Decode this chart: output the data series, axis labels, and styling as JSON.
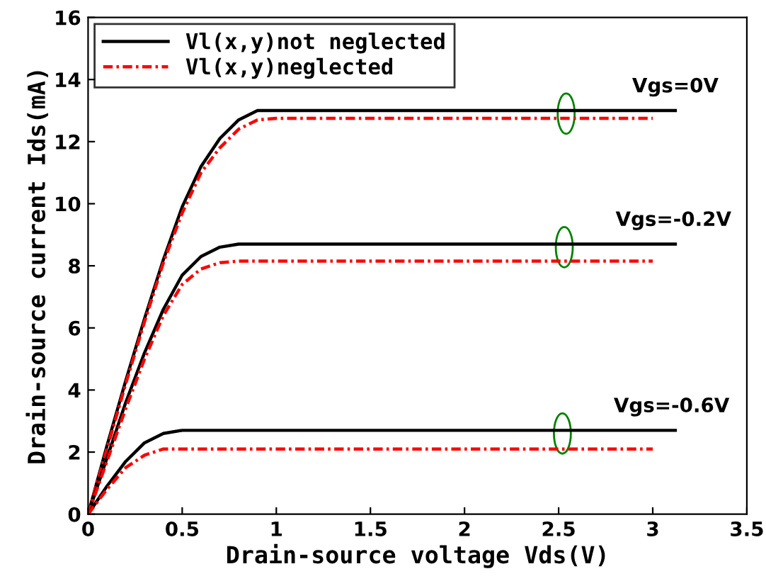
{
  "chart_data": {
    "type": "line",
    "xlabel": "Drain-source voltage Vds(V)",
    "ylabel": "Drain-source current Ids(mA)",
    "xlim": [
      0,
      3.5
    ],
    "ylim": [
      0,
      16
    ],
    "xticks": [
      0,
      0.5,
      1,
      1.5,
      2,
      2.5,
      3,
      3.5
    ],
    "yticks": [
      0,
      2,
      4,
      6,
      8,
      10,
      12,
      14,
      16
    ],
    "grid": false,
    "legend": "top left",
    "marker": "none",
    "series": [
      {
        "name": "Vl(x,y)not neglected",
        "color": "#000000",
        "line_style": "solid",
        "x": [
          0,
          0.1,
          0.2,
          0.3,
          0.4,
          0.5,
          0.6,
          0.7,
          0.8,
          0.9,
          1.0,
          3.12
        ],
        "values": [
          0,
          2.2,
          4.3,
          6.3,
          8.2,
          9.9,
          11.2,
          12.1,
          12.7,
          13,
          13,
          13
        ]
      },
      {
        "name": "Vl(x,y)neglected",
        "color": "#ff0000",
        "line_style": "dashdot",
        "x": [
          0,
          0.1,
          0.2,
          0.3,
          0.4,
          0.5,
          0.6,
          0.7,
          0.8,
          0.9,
          1.0,
          3.0
        ],
        "values": [
          0,
          2.1,
          4.2,
          6.2,
          8.1,
          9.7,
          11.0,
          11.8,
          12.4,
          12.7,
          12.75,
          12.75
        ]
      },
      {
        "color": "#000000",
        "line_style": "solid",
        "x": [
          0,
          0.1,
          0.2,
          0.3,
          0.4,
          0.5,
          0.6,
          0.7,
          0.8,
          3.12
        ],
        "values": [
          0,
          1.8,
          3.6,
          5.2,
          6.6,
          7.7,
          8.3,
          8.6,
          8.7,
          8.7
        ]
      },
      {
        "color": "#ff0000",
        "line_style": "dashdot",
        "x": [
          0,
          0.1,
          0.2,
          0.3,
          0.4,
          0.5,
          0.6,
          0.7,
          0.8,
          3.0
        ],
        "values": [
          0,
          1.7,
          3.4,
          5.0,
          6.4,
          7.4,
          7.9,
          8.1,
          8.15,
          8.15
        ]
      },
      {
        "color": "#000000",
        "line_style": "solid",
        "x": [
          0,
          0.1,
          0.2,
          0.3,
          0.4,
          0.5,
          3.12
        ],
        "values": [
          0,
          0.9,
          1.7,
          2.3,
          2.6,
          2.7,
          2.7
        ]
      },
      {
        "color": "#ff0000",
        "line_style": "dashdot",
        "x": [
          0,
          0.1,
          0.2,
          0.3,
          0.4,
          0.5,
          3.0
        ],
        "values": [
          0,
          0.8,
          1.5,
          1.9,
          2.1,
          2.1,
          2.1
        ]
      }
    ],
    "annotations": [
      {
        "text": "Vgs=0V",
        "x": 3.12,
        "y": 13.0
      },
      {
        "text": "Vgs=-0.2V",
        "x": 3.11,
        "y": 8.7
      },
      {
        "text": "Vgs=-0.6V",
        "x": 3.1,
        "y": 2.7
      }
    ]
  }
}
